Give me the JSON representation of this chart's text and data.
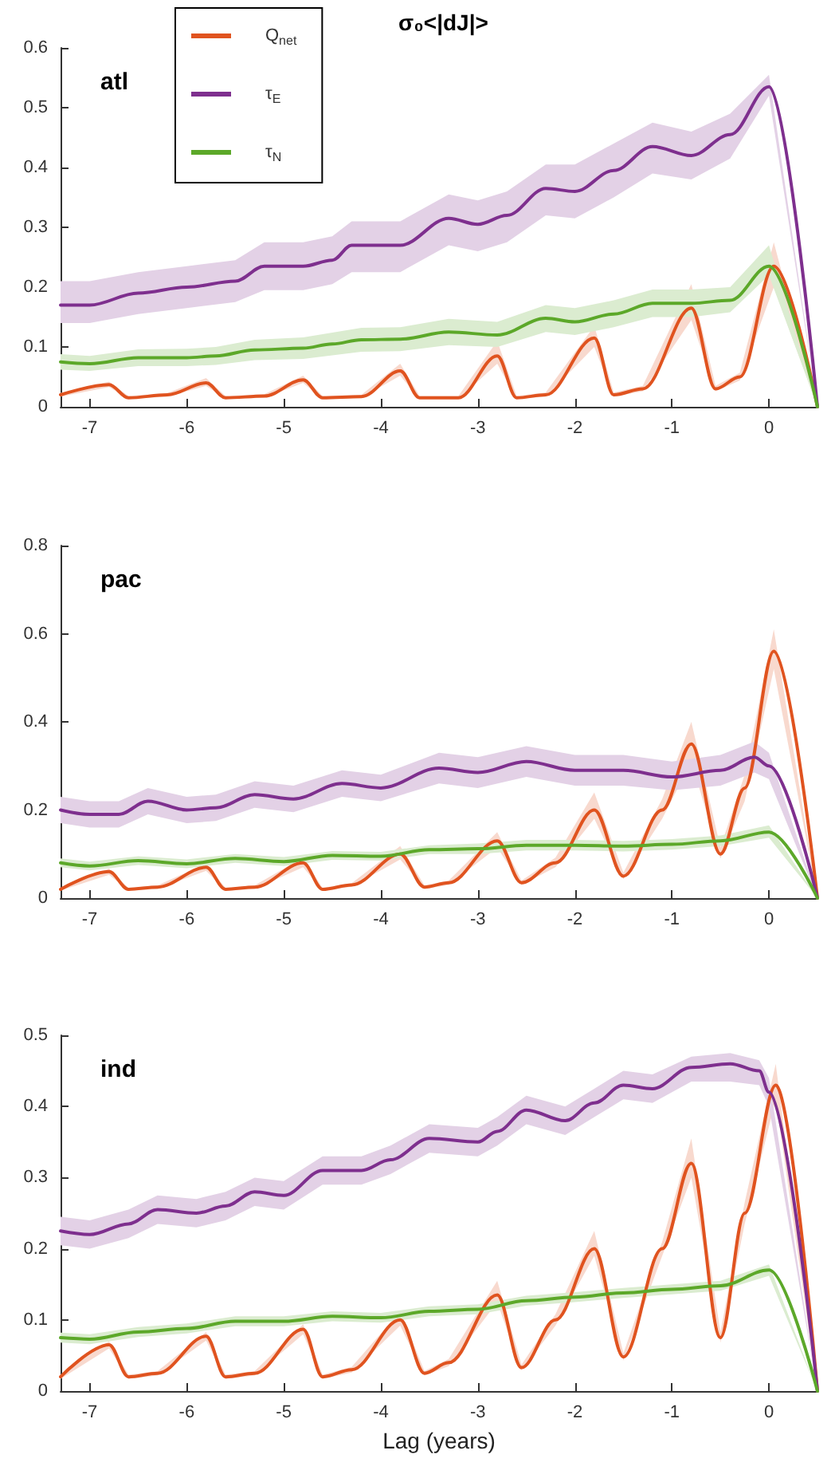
{
  "chart_data": [
    {
      "type": "line",
      "title": "σ₀<|dJ|>",
      "annotations": [
        "atl"
      ],
      "legend": "top left",
      "xlim": [
        -7.3,
        0.5
      ],
      "xticks": [
        -7,
        -6,
        -5,
        -4,
        -3,
        -2,
        -1,
        0
      ],
      "ylim": [
        0,
        0.6
      ],
      "yticks": [
        0,
        0.1,
        0.2,
        0.3,
        0.4,
        0.5,
        0.6
      ],
      "grid": false,
      "series": [
        {
          "name": "Q$_{net}$",
          "color": "#e0531f",
          "x": [
            -7.3,
            -6.8,
            -6.6,
            -6.2,
            -5.8,
            -5.6,
            -5.2,
            -4.8,
            -4.6,
            -4.2,
            -3.8,
            -3.6,
            -3.2,
            -2.8,
            -2.6,
            -2.3,
            -1.8,
            -1.6,
            -1.3,
            -0.8,
            -0.55,
            -0.3,
            0.05,
            0.5
          ],
          "values": [
            0.02,
            0.037,
            0.015,
            0.02,
            0.04,
            0.015,
            0.018,
            0.045,
            0.015,
            0.017,
            0.06,
            0.015,
            0.015,
            0.085,
            0.015,
            0.02,
            0.115,
            0.02,
            0.03,
            0.165,
            0.03,
            0.05,
            0.235,
            0
          ],
          "lower": [
            0.017,
            0.033,
            0.013,
            0.017,
            0.035,
            0.013,
            0.015,
            0.04,
            0.013,
            0.015,
            0.052,
            0.013,
            0.013,
            0.072,
            0.013,
            0.017,
            0.1,
            0.017,
            0.026,
            0.145,
            0.026,
            0.044,
            0.2,
            0
          ],
          "upper": [
            0.023,
            0.042,
            0.018,
            0.023,
            0.048,
            0.018,
            0.021,
            0.052,
            0.018,
            0.02,
            0.072,
            0.018,
            0.018,
            0.11,
            0.018,
            0.024,
            0.135,
            0.024,
            0.035,
            0.205,
            0.035,
            0.057,
            0.275,
            0
          ]
        },
        {
          "name": "τ$_{E}$",
          "color": "#7e2f8e",
          "x": [
            -7.3,
            -7.0,
            -6.5,
            -6.0,
            -5.5,
            -5.2,
            -4.8,
            -4.5,
            -4.3,
            -3.8,
            -3.3,
            -3.0,
            -2.7,
            -2.3,
            -2.0,
            -1.6,
            -1.2,
            -0.8,
            -0.4,
            0.0,
            0.5
          ],
          "values": [
            0.17,
            0.17,
            0.19,
            0.2,
            0.21,
            0.235,
            0.235,
            0.245,
            0.27,
            0.27,
            0.315,
            0.305,
            0.32,
            0.365,
            0.36,
            0.395,
            0.435,
            0.42,
            0.455,
            0.535,
            0
          ],
          "lower": [
            0.14,
            0.14,
            0.155,
            0.165,
            0.175,
            0.195,
            0.195,
            0.205,
            0.225,
            0.225,
            0.27,
            0.26,
            0.275,
            0.32,
            0.315,
            0.35,
            0.39,
            0.38,
            0.415,
            0.52,
            0
          ],
          "upper": [
            0.21,
            0.21,
            0.225,
            0.235,
            0.245,
            0.275,
            0.275,
            0.285,
            0.31,
            0.31,
            0.355,
            0.345,
            0.36,
            0.405,
            0.405,
            0.44,
            0.475,
            0.46,
            0.49,
            0.555,
            0
          ]
        },
        {
          "name": "τ$_{N}$",
          "color": "#5ca829",
          "x": [
            -7.3,
            -7.0,
            -6.5,
            -6.0,
            -5.7,
            -5.3,
            -4.8,
            -4.5,
            -4.2,
            -3.8,
            -3.3,
            -2.8,
            -2.3,
            -2.0,
            -1.6,
            -1.2,
            -0.8,
            -0.4,
            0.0,
            0.5
          ],
          "values": [
            0.075,
            0.072,
            0.082,
            0.082,
            0.085,
            0.095,
            0.098,
            0.105,
            0.112,
            0.113,
            0.125,
            0.12,
            0.148,
            0.142,
            0.155,
            0.173,
            0.173,
            0.178,
            0.235,
            0
          ],
          "lower": [
            0.062,
            0.06,
            0.068,
            0.068,
            0.07,
            0.078,
            0.08,
            0.086,
            0.092,
            0.093,
            0.103,
            0.1,
            0.125,
            0.12,
            0.133,
            0.15,
            0.15,
            0.158,
            0.22,
            0
          ],
          "upper": [
            0.088,
            0.085,
            0.096,
            0.097,
            0.1,
            0.112,
            0.116,
            0.124,
            0.132,
            0.133,
            0.147,
            0.142,
            0.17,
            0.165,
            0.178,
            0.196,
            0.196,
            0.2,
            0.27,
            0
          ]
        }
      ]
    },
    {
      "type": "line",
      "annotations": [
        "pac"
      ],
      "xlim": [
        -7.3,
        0.5
      ],
      "xticks": [
        -7,
        -6,
        -5,
        -4,
        -3,
        -2,
        -1,
        0
      ],
      "ylim": [
        0,
        0.8
      ],
      "yticks": [
        0,
        0.2,
        0.4,
        0.6,
        0.8
      ],
      "grid": false,
      "series": [
        {
          "color": "#e0531f",
          "x": [
            -7.3,
            -6.8,
            -6.6,
            -6.3,
            -5.8,
            -5.6,
            -5.3,
            -4.8,
            -4.6,
            -4.3,
            -3.8,
            -3.55,
            -3.3,
            -2.8,
            -2.55,
            -2.2,
            -1.8,
            -1.5,
            -1.1,
            -0.8,
            -0.5,
            -0.25,
            0.05,
            0.5
          ],
          "values": [
            0.02,
            0.06,
            0.02,
            0.025,
            0.07,
            0.02,
            0.025,
            0.08,
            0.02,
            0.03,
            0.1,
            0.025,
            0.035,
            0.13,
            0.035,
            0.08,
            0.2,
            0.05,
            0.2,
            0.35,
            0.1,
            0.25,
            0.56,
            0
          ],
          "lower": [
            0.017,
            0.053,
            0.017,
            0.021,
            0.062,
            0.017,
            0.021,
            0.07,
            0.017,
            0.026,
            0.088,
            0.021,
            0.03,
            0.115,
            0.03,
            0.07,
            0.18,
            0.043,
            0.18,
            0.31,
            0.09,
            0.22,
            0.52,
            0
          ],
          "upper": [
            0.023,
            0.067,
            0.023,
            0.029,
            0.078,
            0.023,
            0.029,
            0.092,
            0.023,
            0.034,
            0.118,
            0.029,
            0.04,
            0.15,
            0.04,
            0.092,
            0.24,
            0.058,
            0.225,
            0.4,
            0.115,
            0.28,
            0.61,
            0
          ]
        },
        {
          "color": "#7e2f8e",
          "x": [
            -7.3,
            -7.0,
            -6.7,
            -6.4,
            -6.0,
            -5.7,
            -5.3,
            -4.9,
            -4.4,
            -4.0,
            -3.4,
            -3.0,
            -2.5,
            -2.0,
            -1.5,
            -1.0,
            -0.5,
            -0.15,
            0.0,
            0.5
          ],
          "values": [
            0.2,
            0.19,
            0.19,
            0.22,
            0.2,
            0.205,
            0.235,
            0.225,
            0.26,
            0.25,
            0.295,
            0.285,
            0.31,
            0.29,
            0.29,
            0.275,
            0.29,
            0.32,
            0.3,
            0
          ],
          "lower": [
            0.17,
            0.16,
            0.16,
            0.19,
            0.17,
            0.175,
            0.205,
            0.195,
            0.23,
            0.22,
            0.26,
            0.25,
            0.275,
            0.255,
            0.255,
            0.245,
            0.255,
            0.285,
            0.27,
            0
          ],
          "upper": [
            0.23,
            0.22,
            0.22,
            0.25,
            0.23,
            0.235,
            0.265,
            0.255,
            0.29,
            0.28,
            0.33,
            0.32,
            0.345,
            0.325,
            0.325,
            0.31,
            0.325,
            0.355,
            0.33,
            0
          ]
        },
        {
          "color": "#5ca829",
          "x": [
            -7.3,
            -7.0,
            -6.5,
            -6.0,
            -5.5,
            -5.0,
            -4.5,
            -4.0,
            -3.5,
            -3.0,
            -2.5,
            -2.0,
            -1.5,
            -1.0,
            -0.5,
            0.0,
            0.5
          ],
          "values": [
            0.08,
            0.073,
            0.085,
            0.078,
            0.09,
            0.083,
            0.097,
            0.095,
            0.11,
            0.112,
            0.12,
            0.12,
            0.118,
            0.122,
            0.13,
            0.15,
            0
          ],
          "lower": [
            0.07,
            0.063,
            0.075,
            0.068,
            0.08,
            0.073,
            0.087,
            0.085,
            0.1,
            0.1,
            0.108,
            0.108,
            0.106,
            0.11,
            0.118,
            0.137,
            0
          ],
          "upper": [
            0.09,
            0.083,
            0.095,
            0.088,
            0.1,
            0.093,
            0.107,
            0.105,
            0.12,
            0.124,
            0.132,
            0.132,
            0.13,
            0.134,
            0.142,
            0.165,
            0
          ]
        }
      ]
    },
    {
      "type": "line",
      "annotations": [
        "ind"
      ],
      "xlabel": "Lag (years)",
      "xlim": [
        -7.3,
        0.5
      ],
      "xticks": [
        -7,
        -6,
        -5,
        -4,
        -3,
        -2,
        -1,
        0
      ],
      "ylim": [
        0,
        0.5
      ],
      "yticks": [
        0,
        0.1,
        0.2,
        0.3,
        0.4,
        0.5
      ],
      "grid": false,
      "series": [
        {
          "color": "#e0531f",
          "x": [
            -7.3,
            -6.8,
            -6.6,
            -6.3,
            -5.8,
            -5.6,
            -5.3,
            -4.8,
            -4.6,
            -4.3,
            -3.8,
            -3.55,
            -3.3,
            -2.8,
            -2.55,
            -2.2,
            -1.8,
            -1.5,
            -1.1,
            -0.8,
            -0.5,
            -0.25,
            0.07,
            0.5
          ],
          "values": [
            0.02,
            0.065,
            0.02,
            0.025,
            0.077,
            0.02,
            0.025,
            0.087,
            0.02,
            0.03,
            0.1,
            0.025,
            0.04,
            0.135,
            0.033,
            0.1,
            0.2,
            0.048,
            0.2,
            0.32,
            0.075,
            0.25,
            0.43,
            0
          ],
          "lower": [
            0.017,
            0.06,
            0.017,
            0.022,
            0.071,
            0.017,
            0.022,
            0.08,
            0.017,
            0.026,
            0.092,
            0.022,
            0.035,
            0.125,
            0.029,
            0.092,
            0.19,
            0.043,
            0.19,
            0.3,
            0.068,
            0.235,
            0.41,
            0
          ],
          "upper": [
            0.023,
            0.07,
            0.023,
            0.028,
            0.083,
            0.023,
            0.028,
            0.094,
            0.023,
            0.034,
            0.112,
            0.028,
            0.045,
            0.155,
            0.037,
            0.108,
            0.225,
            0.053,
            0.21,
            0.355,
            0.082,
            0.265,
            0.46,
            0
          ]
        },
        {
          "color": "#7e2f8e",
          "x": [
            -7.3,
            -7.0,
            -6.6,
            -6.3,
            -5.9,
            -5.6,
            -5.3,
            -5.0,
            -4.6,
            -4.2,
            -3.9,
            -3.5,
            -3.0,
            -2.8,
            -2.5,
            -2.1,
            -1.8,
            -1.5,
            -1.2,
            -0.8,
            -0.4,
            -0.1,
            0.0,
            0.5
          ],
          "values": [
            0.225,
            0.22,
            0.235,
            0.255,
            0.25,
            0.26,
            0.28,
            0.275,
            0.31,
            0.31,
            0.325,
            0.355,
            0.35,
            0.365,
            0.395,
            0.38,
            0.405,
            0.43,
            0.425,
            0.455,
            0.46,
            0.45,
            0.42,
            0
          ],
          "lower": [
            0.205,
            0.2,
            0.215,
            0.235,
            0.23,
            0.24,
            0.26,
            0.255,
            0.29,
            0.29,
            0.305,
            0.335,
            0.33,
            0.345,
            0.375,
            0.36,
            0.385,
            0.41,
            0.405,
            0.435,
            0.435,
            0.43,
            0.4,
            0
          ],
          "upper": [
            0.245,
            0.24,
            0.255,
            0.275,
            0.27,
            0.28,
            0.3,
            0.295,
            0.33,
            0.33,
            0.345,
            0.375,
            0.37,
            0.385,
            0.415,
            0.4,
            0.425,
            0.45,
            0.445,
            0.47,
            0.475,
            0.465,
            0.44,
            0
          ]
        },
        {
          "color": "#5ca829",
          "x": [
            -7.3,
            -7.0,
            -6.5,
            -6.0,
            -5.5,
            -5.0,
            -4.5,
            -4.0,
            -3.5,
            -3.0,
            -2.5,
            -2.0,
            -1.5,
            -1.0,
            -0.5,
            0.0,
            0.5
          ],
          "values": [
            0.075,
            0.073,
            0.083,
            0.088,
            0.098,
            0.098,
            0.105,
            0.103,
            0.112,
            0.115,
            0.127,
            0.132,
            0.138,
            0.143,
            0.148,
            0.17,
            0
          ],
          "lower": [
            0.068,
            0.066,
            0.076,
            0.081,
            0.091,
            0.091,
            0.098,
            0.096,
            0.105,
            0.108,
            0.12,
            0.125,
            0.131,
            0.136,
            0.141,
            0.162,
            0
          ],
          "upper": [
            0.082,
            0.08,
            0.09,
            0.095,
            0.105,
            0.105,
            0.112,
            0.11,
            0.119,
            0.122,
            0.134,
            0.139,
            0.145,
            0.15,
            0.155,
            0.178,
            0
          ]
        }
      ]
    }
  ]
}
